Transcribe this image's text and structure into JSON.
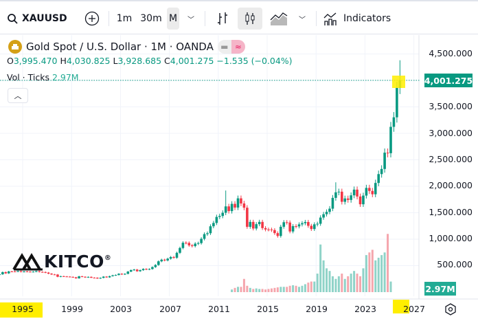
{
  "toolbar": {
    "symbol": "XAUUSD",
    "intervals": [
      "1m",
      "30m",
      "M"
    ],
    "selected_interval": "M",
    "indicators_label": "Indicators"
  },
  "legend": {
    "title": "Gold Spot / U.S. Dollar · 1M · OANDA",
    "o_label": "O",
    "o": "3,995.470",
    "h_label": "H",
    "h": "4,030.825",
    "l_label": "L",
    "l": "3,928.685",
    "c_label": "C",
    "c": "4,001.275",
    "change": "−1.535 (−0.04%)",
    "vol_label": "Vol · Ticks",
    "vol_value": "2.97M"
  },
  "price_axis": {
    "ticks": [
      "4,500.000",
      "3,500.000",
      "3,000.000",
      "2,500.000",
      "2,000.000",
      "1,500.000",
      "1,000.000",
      "500.000"
    ],
    "last_price": "4,001.275",
    "last_volume": "2.97M"
  },
  "time_axis": {
    "ticks": [
      "1995",
      "1999",
      "2003",
      "2007",
      "2011",
      "2015",
      "2019",
      "2023",
      "2027"
    ]
  },
  "watermark": {
    "text": "KITCO",
    "registered": "®"
  },
  "colors": {
    "up": "#089981",
    "down": "#f23645",
    "highlight": "#ffee00",
    "accent": "#22ab94"
  },
  "chart_data": {
    "type": "candlestick",
    "period": "quarterly approximation of monthly candles",
    "start": "1993-Q1",
    "closes": [
      337,
      378,
      355,
      391,
      390,
      388,
      397,
      383,
      391,
      387,
      384,
      387,
      396,
      382,
      379,
      369,
      349,
      334,
      332,
      290,
      301,
      296,
      293,
      288,
      280,
      261,
      299,
      290,
      278,
      288,
      273,
      272,
      258,
      270,
      293,
      279,
      302,
      318,
      324,
      347,
      334,
      346,
      388,
      416,
      426,
      395,
      415,
      438,
      428,
      437,
      473,
      513,
      582,
      613,
      599,
      632,
      663,
      650,
      743,
      834,
      933,
      930,
      884,
      870,
      916,
      926,
      1007,
      1096,
      1113,
      1244,
      1307,
      1421,
      1439,
      1500,
      1620,
      1531,
      1668,
      1598,
      1772,
      1675,
      1595,
      1234,
      1327,
      1202,
      1284,
      1327,
      1210,
      1184,
      1183,
      1172,
      1115,
      1061,
      1235,
      1321,
      1315,
      1146,
      1247,
      1242,
      1280,
      1303,
      1325,
      1253,
      1192,
      1281,
      1292,
      1409,
      1472,
      1517,
      1577,
      1781,
      1886,
      1898,
      1707,
      1770,
      1742,
      1829,
      1937,
      1807,
      1660,
      1824,
      1969,
      1912,
      1849,
      2063,
      2230,
      2327,
      2635,
      2625,
      3123,
      3303,
      3858,
      4001
    ],
    "high_overrides": {
      "2011-Q3": 1920,
      "2020-Q3": 2075,
      "2025-Q4": 4381
    },
    "volume_start": "2012-Q1",
    "volume": [
      0.05,
      0.08,
      0.1,
      0.1,
      0.25,
      0.12,
      0.08,
      0.06,
      0.07,
      0.06,
      0.06,
      0.05,
      0.06,
      0.07,
      0.08,
      0.09,
      0.1,
      0.1,
      0.1,
      0.12,
      0.13,
      0.12,
      0.1,
      0.12,
      0.15,
      0.18,
      0.2,
      0.2,
      0.35,
      0.9,
      0.6,
      0.45,
      0.4,
      0.3,
      0.25,
      0.3,
      0.35,
      0.25,
      0.3,
      0.35,
      0.4,
      0.35,
      0.3,
      0.45,
      0.7,
      0.75,
      0.8,
      0.6,
      0.65,
      0.7,
      0.75,
      1.1,
      0.2
    ],
    "ylim": [
      0,
      4700
    ]
  }
}
